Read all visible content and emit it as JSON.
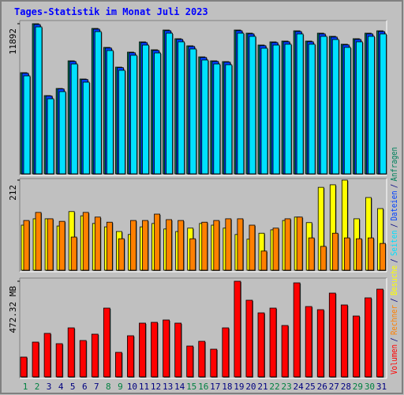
{
  "title": "Tages-Statistik im Monat Juli 2023",
  "legend_separator": "/",
  "chart_data": [
    {
      "type": "bar",
      "ylim": [
        0,
        11892
      ],
      "yticks": [
        11892
      ],
      "series": [
        {
          "name": "Anfragen",
          "color": "#00805c",
          "values": [
            8012,
            11892,
            6196,
            6760,
            8950,
            7511,
            11517,
            10014,
            8450,
            9639,
            10452,
            9826,
            11391,
            10703,
            10140,
            9263,
            8950,
            8888,
            11391,
            11141,
            10202,
            10452,
            10515,
            11329,
            10515,
            11141,
            10891,
            10265,
            10703,
            11141,
            11329
          ]
        },
        {
          "name": "Dateien",
          "color": "#0040ff",
          "values": [
            7970,
            11830,
            6165,
            6725,
            8905,
            7475,
            11460,
            9965,
            8410,
            9590,
            10400,
            9775,
            11335,
            10650,
            10090,
            9215,
            8905,
            8845,
            11335,
            11085,
            10150,
            10400,
            10460,
            11270,
            10460,
            11085,
            10835,
            10215,
            10650,
            11085,
            11270
          ]
        },
        {
          "name": "Seiten",
          "color": "#00e0ff",
          "values": [
            7760,
            11640,
            5945,
            6510,
            8700,
            7260,
            11265,
            9765,
            8200,
            9390,
            10200,
            9575,
            11140,
            10455,
            9890,
            9015,
            8700,
            8640,
            11140,
            10890,
            9950,
            10200,
            10265,
            11080,
            10265,
            10890,
            10640,
            10015,
            10455,
            10890,
            11080
          ]
        }
      ]
    },
    {
      "type": "bar",
      "ylim": [
        0,
        212
      ],
      "yticks": [
        212
      ],
      "series": [
        {
          "name": "Besuche",
          "color": "#ffff00",
          "values": [
            106,
            121,
            121,
            104,
            138,
            128,
            110,
            102,
            91,
            84,
            102,
            110,
            97,
            91,
            99,
            110,
            106,
            99,
            84,
            73,
            87,
            95,
            117,
            125,
            112,
            195,
            201,
            212,
            121,
            171,
            145
          ]
        },
        {
          "name": "Rechner",
          "color": "#ff8000",
          "values": [
            117,
            136,
            121,
            115,
            78,
            136,
            125,
            113,
            74,
            117,
            117,
            132,
            119,
            117,
            74,
            113,
            117,
            121,
            121,
            106,
            45,
            99,
            121,
            125,
            76,
            56,
            87,
            76,
            74,
            76,
            63
          ]
        }
      ]
    },
    {
      "type": "bar",
      "ylim": [
        0,
        472.32
      ],
      "yticks": [
        {
          "value": 472.32,
          "label": "472.32 MB"
        }
      ],
      "categories": [
        "1",
        "2",
        "3",
        "4",
        "5",
        "6",
        "7",
        "8",
        "9",
        "10",
        "11",
        "12",
        "13",
        "14",
        "15",
        "16",
        "17",
        "18",
        "19",
        "20",
        "21",
        "22",
        "23",
        "24",
        "25",
        "26",
        "27",
        "28",
        "29",
        "30",
        "31"
      ],
      "category_colors": [
        "#008040",
        "#008040",
        "#000080",
        "#000080",
        "#000080",
        "#000080",
        "#000080",
        "#008040",
        "#008040",
        "#000080",
        "#000080",
        "#000080",
        "#000080",
        "#000080",
        "#008040",
        "#008040",
        "#000080",
        "#000080",
        "#000080",
        "#000080",
        "#000080",
        "#008040",
        "#008040",
        "#000080",
        "#000080",
        "#000080",
        "#000080",
        "#000080",
        "#008040",
        "#008040",
        "#000080"
      ],
      "series": [
        {
          "name": "Volumen",
          "color": "#ff0000",
          "values": [
            97.6,
            171.7,
            214.7,
            163.9,
            242.0,
            179.5,
            210.8,
            339.6,
            121.0,
            203.0,
            265.4,
            269.3,
            281.0,
            265.4,
            152.2,
            175.6,
            136.6,
            242.0,
            472.32,
            378.6,
            316.1,
            339.6,
            253.7,
            464.4,
            347.4,
            331.8,
            413.7,
            355.2,
            300.5,
            390.3,
            433.2
          ]
        }
      ]
    }
  ]
}
